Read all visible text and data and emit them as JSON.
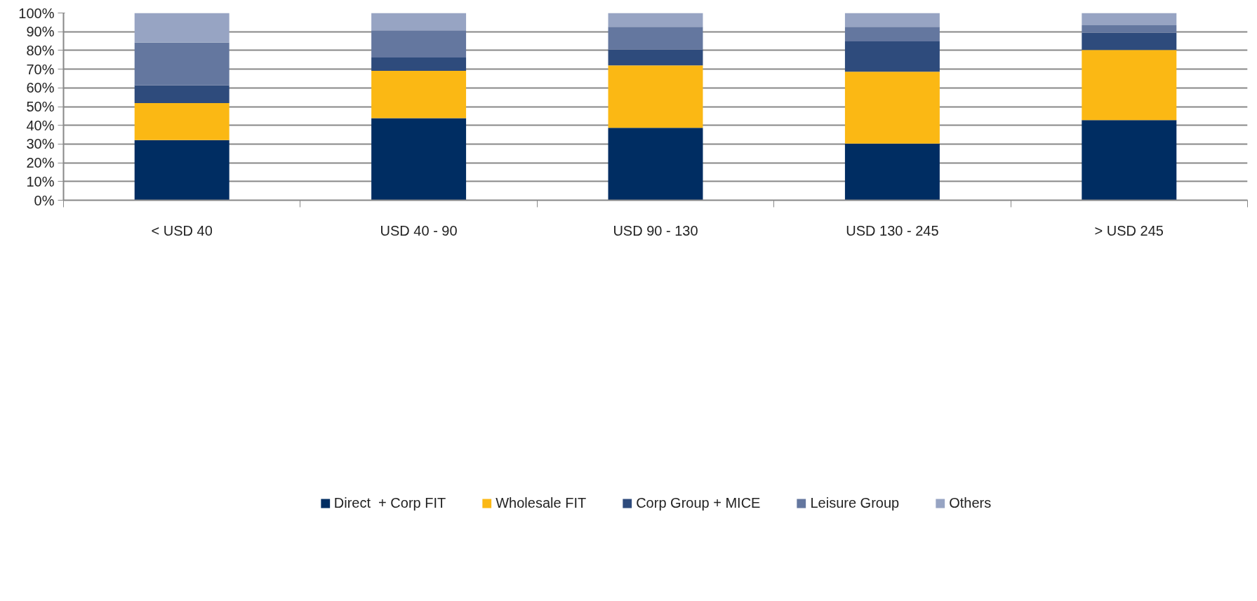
{
  "chart_data": {
    "type": "bar",
    "stacked": true,
    "categories": [
      "< USD 40",
      "USD 40 - 90",
      "USD 90 - 130",
      "USD 130 - 245",
      "> USD 245"
    ],
    "series": [
      {
        "name": "Direct  + Corp FIT",
        "color": "#002d62",
        "values": [
          32.1,
          43.8,
          38.7,
          30.2,
          42.8
        ]
      },
      {
        "name": "Wholesale FIT",
        "color": "#fbb814",
        "values": [
          19.8,
          25.3,
          33.3,
          38.4,
          37.4
        ]
      },
      {
        "name": "Corp Group + MICE",
        "color": "#2e4b7c",
        "values": [
          9.5,
          7.1,
          8.5,
          16.2,
          9.2
        ]
      },
      {
        "name": "Leisure Group",
        "color": "#64779f",
        "values": [
          22.8,
          14.5,
          12.1,
          7.8,
          4.0
        ]
      },
      {
        "name": "Others",
        "color": "#97a4c3",
        "values": [
          15.8,
          9.3,
          7.4,
          7.4,
          6.6
        ]
      }
    ],
    "ylim": [
      0,
      100
    ],
    "yticks": [
      {
        "value": 0,
        "label": "0%"
      },
      {
        "value": 10,
        "label": "10%"
      },
      {
        "value": 20,
        "label": "20%"
      },
      {
        "value": 30,
        "label": "30%"
      },
      {
        "value": 40,
        "label": "40%"
      },
      {
        "value": 50,
        "label": "50%"
      },
      {
        "value": 60,
        "label": "60%"
      },
      {
        "value": 70,
        "label": "70%"
      },
      {
        "value": 80,
        "label": "80%"
      },
      {
        "value": 90,
        "label": "90%"
      },
      {
        "value": 100,
        "label": "100%"
      }
    ],
    "grid": "y",
    "legend": "bottom"
  }
}
